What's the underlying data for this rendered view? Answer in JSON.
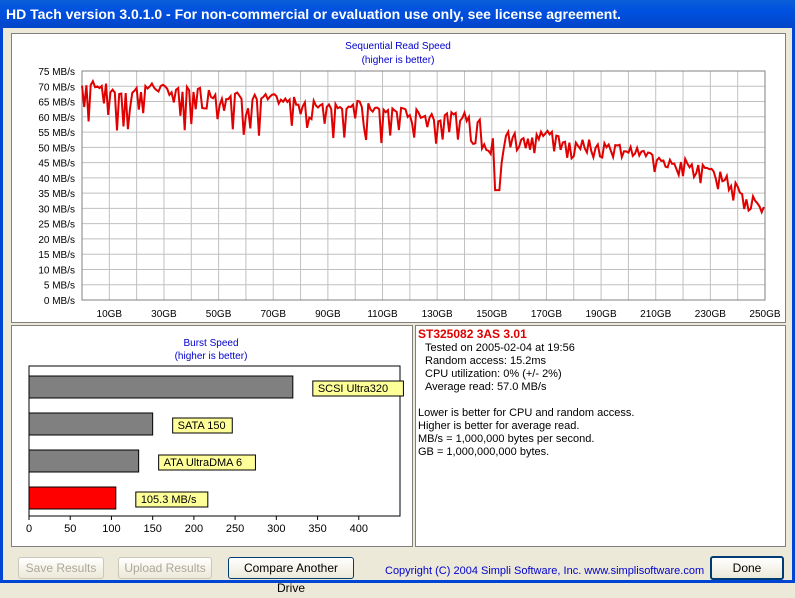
{
  "window": {
    "title": "HD Tach version 3.0.1.0  - For non-commercial or evaluation use only, see license agreement."
  },
  "read_chart": {
    "title": "Sequential Read Speed",
    "subtitle": "(higher is better)",
    "y_ticks": [
      "0 MB/s",
      "5 MB/s",
      "10 MB/s",
      "15 MB/s",
      "20 MB/s",
      "25 MB/s",
      "30 MB/s",
      "35 MB/s",
      "40 MB/s",
      "45 MB/s",
      "50 MB/s",
      "55 MB/s",
      "60 MB/s",
      "65 MB/s",
      "70 MB/s",
      "75 MB/s"
    ],
    "x_ticks": [
      "10GB",
      "30GB",
      "50GB",
      "70GB",
      "90GB",
      "110GB",
      "130GB",
      "150GB",
      "170GB",
      "190GB",
      "210GB",
      "230GB",
      "250GB"
    ]
  },
  "burst_chart": {
    "title": "Burst Speed",
    "subtitle": "(higher is better)",
    "x_ticks": [
      "0",
      "50",
      "100",
      "150",
      "200",
      "250",
      "300",
      "350",
      "400"
    ]
  },
  "drive_info": {
    "name": "ST325082 3AS  3.01",
    "tested_on": "Tested on 2005-02-04 at 19:56",
    "random_access": "Random access: 15.2ms",
    "cpu": "CPU utilization: 0% (+/- 2%)",
    "avg_read": "Average read: 57.0 MB/s",
    "note1": "Lower is better for CPU and random access.",
    "note2": "Higher is better for average read.",
    "note3": "MB/s = 1,000,000 bytes per second.",
    "note4": "GB = 1,000,000,000 bytes."
  },
  "buttons": {
    "save": "Save Results",
    "upload": "Upload Results",
    "compare": "Compare Another Drive",
    "done": "Done"
  },
  "copyright": "Copyright (C) 2004 Simpli Software, Inc. www.simplisoftware.com",
  "colors": {
    "line": "#e00000",
    "bar_gray": "#808080",
    "bar_red": "#ff0000",
    "label_bg": "#ffff99",
    "title_blue": "#0000cc"
  },
  "chart_data": [
    {
      "type": "line",
      "title": "Sequential Read Speed",
      "subtitle": "(higher is better)",
      "xlabel": "",
      "ylabel": "",
      "ylim": [
        0,
        75
      ],
      "xlim": [
        0,
        250
      ],
      "grid": true,
      "x": [
        0,
        5,
        10,
        15,
        20,
        25,
        30,
        35,
        40,
        45,
        50,
        55,
        60,
        65,
        70,
        75,
        80,
        85,
        90,
        95,
        100,
        105,
        110,
        115,
        120,
        125,
        130,
        135,
        140,
        145,
        150,
        152,
        155,
        160,
        165,
        170,
        175,
        180,
        185,
        190,
        195,
        200,
        205,
        210,
        215,
        220,
        225,
        230,
        235,
        240,
        245,
        250
      ],
      "values": [
        70,
        71,
        69,
        68,
        69,
        70,
        69,
        68,
        69,
        68,
        67,
        67,
        66,
        66,
        66,
        65,
        65,
        64,
        64,
        64,
        64,
        63,
        62,
        62,
        61,
        61,
        60,
        60,
        60,
        58,
        56,
        36,
        54,
        54,
        53,
        55,
        53,
        52,
        51,
        51,
        50,
        49,
        48,
        47,
        46,
        45,
        44,
        42,
        40,
        37,
        33,
        31
      ]
    },
    {
      "type": "bar",
      "title": "Burst Speed",
      "subtitle": "(higher is better)",
      "orientation": "horizontal",
      "categories": [
        "SCSI Ultra320",
        "SATA 150",
        "ATA UltraDMA 6",
        "105.3 MB/s"
      ],
      "values": [
        320,
        150,
        133,
        105.3
      ],
      "xlim": [
        0,
        450
      ]
    }
  ]
}
